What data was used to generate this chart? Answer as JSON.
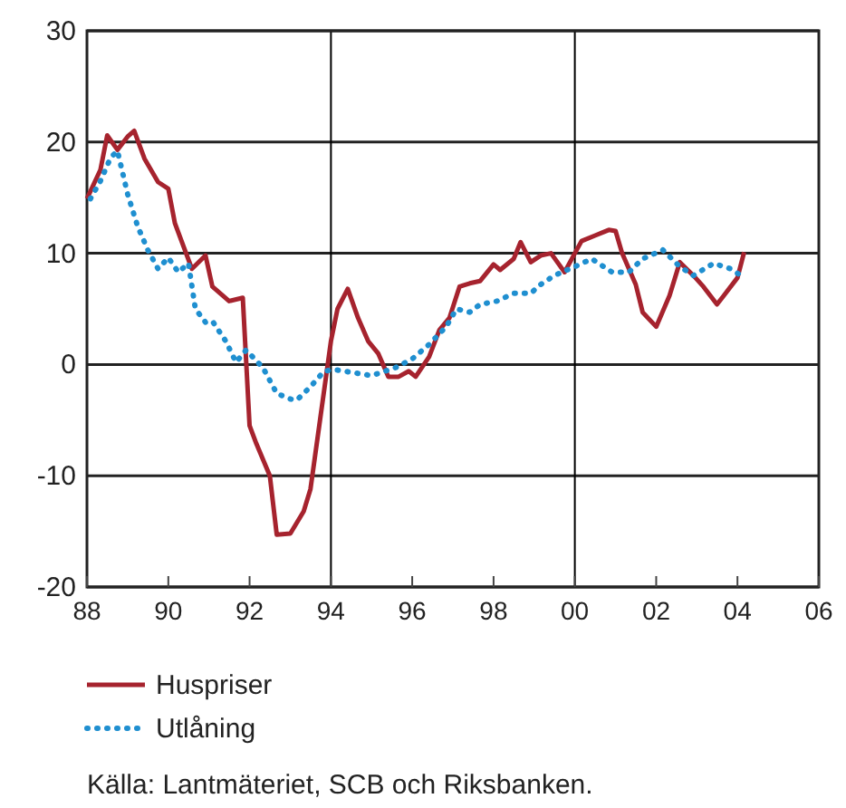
{
  "chart_data": {
    "type": "line",
    "xlim": [
      "1988",
      "2006"
    ],
    "xticks": [
      {
        "value": "1988",
        "label": "88"
      },
      {
        "value": "1990",
        "label": "90"
      },
      {
        "value": "1992",
        "label": "92"
      },
      {
        "value": "1994",
        "label": "94"
      },
      {
        "value": "1996",
        "label": "96"
      },
      {
        "value": "1998",
        "label": "98"
      },
      {
        "value": "2000",
        "label": "00"
      },
      {
        "value": "2002",
        "label": "02"
      },
      {
        "value": "2004",
        "label": "04"
      },
      {
        "value": "2006",
        "label": "06"
      }
    ],
    "ylim": [
      -20,
      30
    ],
    "yticks": [
      -20,
      -10,
      0,
      10,
      20,
      30
    ],
    "grid": "y",
    "legend": "bottom",
    "ref_lines": [
      {
        "axis": "x",
        "value": "1994",
        "color": "#000000"
      },
      {
        "axis": "x",
        "value": "2000",
        "color": "#000000"
      }
    ],
    "series": [
      {
        "name": "Huspriser",
        "color": "#a6232e",
        "line_style": "solid",
        "x": [
          "1988-01",
          "1988-05",
          "1988-07",
          "1988-10",
          "1989-01",
          "1989-03",
          "1989-06",
          "1989-10",
          "1990-01",
          "1990-03",
          "1990-08",
          "1990-12",
          "1991-02",
          "1991-07",
          "1991-11",
          "1992-01",
          "1992-03",
          "1992-07",
          "1992-09",
          "1993-01",
          "1993-05",
          "1993-07",
          "1994-01",
          "1994-03",
          "1994-06",
          "1994-09",
          "1994-12",
          "1995-03",
          "1995-06",
          "1995-09",
          "1995-12",
          "1996-02",
          "1996-06",
          "1996-09",
          "1996-12",
          "1997-03",
          "1997-06",
          "1997-09",
          "1998-01",
          "1998-03",
          "1998-07",
          "1998-09",
          "1998-12",
          "1999-03",
          "1999-06",
          "1999-10",
          "2000-01",
          "2000-03",
          "2000-07",
          "2000-11",
          "2001-01",
          "2001-03",
          "2001-07",
          "2001-09",
          "2002-01",
          "2002-05",
          "2002-08",
          "2002-12",
          "2003-03",
          "2003-07",
          "2003-09",
          "2004-01",
          "2004-03"
        ],
        "values": [
          14.9,
          17.5,
          20.6,
          19.3,
          20.5,
          21,
          18.5,
          16.4,
          15.8,
          12.7,
          8.6,
          9.8,
          7,
          5.7,
          6,
          -5.5,
          -7.1,
          -10,
          -15.3,
          -15.2,
          -13.2,
          -11.2,
          2.1,
          5,
          6.8,
          4.2,
          2.1,
          1,
          -1.1,
          -1.1,
          -0.6,
          -1.1,
          0.7,
          3.1,
          4.2,
          7,
          7.3,
          7.5,
          9,
          8.5,
          9.5,
          11,
          9.2,
          9.8,
          10,
          8.3,
          10,
          11.1,
          11.6,
          12.1,
          12,
          10,
          7.2,
          4.7,
          3.4,
          6.2,
          9.2,
          8,
          7,
          5.4,
          6.2,
          7.8,
          10.1
        ]
      },
      {
        "name": "Utlåning",
        "color": "#1f8fd0",
        "line_style": "dotted",
        "x": [
          "1988-02",
          "1988-05",
          "1988-08",
          "1988-10",
          "1989-01",
          "1989-04",
          "1989-07",
          "1989-10",
          "1990-01",
          "1990-04",
          "1990-07",
          "1990-09",
          "1990-12",
          "1991-02",
          "1991-06",
          "1991-09",
          "1991-12",
          "1992-05",
          "1992-09",
          "1993-01",
          "1993-03",
          "1993-07",
          "1993-11",
          "1994-01",
          "1994-03",
          "1995-01",
          "1995-08",
          "1996-01",
          "1996-06",
          "1996-11",
          "1997-02",
          "1997-06",
          "1997-09",
          "1998-02",
          "1998-07",
          "1998-12",
          "1999-03",
          "1999-07",
          "2000-01",
          "2000-06",
          "2000-12",
          "2001-05",
          "2001-09",
          "2002-03",
          "2002-08",
          "2002-12",
          "2003-06",
          "2003-11",
          "2004-02"
        ],
        "values": [
          14.9,
          16.5,
          18.6,
          19.2,
          15.3,
          12.4,
          10.3,
          8.6,
          9.6,
          8.3,
          9.1,
          5,
          3.8,
          3.9,
          2.1,
          0.2,
          1.3,
          -0.3,
          -2.6,
          -3.1,
          -3.2,
          -2,
          -0.6,
          -0.5,
          -0.5,
          -1,
          -0.3,
          0.5,
          1.8,
          3.4,
          5,
          4.7,
          5.4,
          5.7,
          6.4,
          6.4,
          7.2,
          8,
          8.8,
          9.5,
          8.3,
          8.3,
          9.5,
          10.3,
          8.8,
          8,
          9.1,
          8.6,
          8
        ]
      }
    ],
    "annotations": [
      "Källa: Lantmäteriet, SCB och Riksbanken."
    ]
  }
}
